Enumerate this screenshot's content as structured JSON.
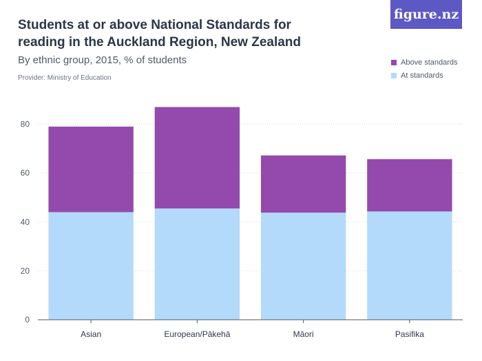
{
  "header": {
    "title": "Students at or above National Standards for reading in the Auckland Region, New Zealand",
    "subtitle": "By ethnic group, 2015, % of students",
    "provider": "Provider: Ministry of Education",
    "logo_text": "figure.nz"
  },
  "chart_data": {
    "type": "bar",
    "stacked": true,
    "categories": [
      "Asian",
      "European/Pākehā",
      "Māori",
      "Pasifika"
    ],
    "series": [
      {
        "name": "At standards",
        "color": "#b3dafb",
        "values": [
          44,
          45.5,
          43.8,
          44.3
        ]
      },
      {
        "name": "Above standards",
        "color": "#944aad",
        "values": [
          35,
          41.5,
          23.4,
          21.4
        ]
      }
    ],
    "ylim": [
      0,
      90
    ],
    "yticks": [
      0,
      20,
      40,
      60,
      80
    ],
    "grid": true,
    "legend_position": "top-right"
  }
}
